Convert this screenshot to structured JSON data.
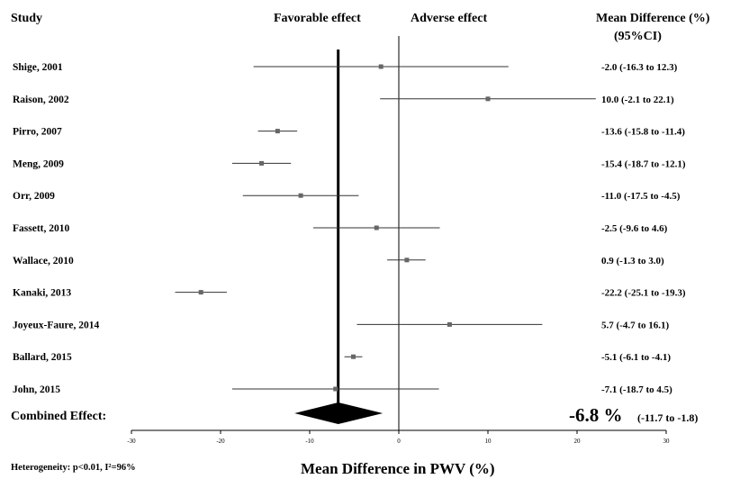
{
  "headers": {
    "study": "Study",
    "favorable": "Favorable effect",
    "adverse": "Adverse effect",
    "mean_diff": "Mean Difference (%)",
    "ci": "(95%CI)"
  },
  "combined": {
    "label": "Combined Effect:",
    "value_text": "-6.8 %",
    "ci_text": "(-11.7 to -1.8)",
    "mean": -6.8,
    "lower": -11.7,
    "upper": -1.8
  },
  "footer": {
    "heterogeneity": "Heterogeneity: p<0.01, I²=96%",
    "xlabel": "Mean Difference in PWV (%)"
  },
  "chart_data": {
    "type": "forest",
    "xlim": [
      -30,
      30
    ],
    "x_ticks": [
      -30,
      -20,
      -10,
      0,
      10,
      20,
      30
    ],
    "reference_line": 0,
    "combined_line": -6.8,
    "studies": [
      {
        "label": "Shige, 2001",
        "mean": -2.0,
        "lower": -16.3,
        "upper": 12.3,
        "text": "-2.0 (-16.3 to 12.3)"
      },
      {
        "label": "Raison, 2002",
        "mean": 10.0,
        "lower": -2.1,
        "upper": 22.1,
        "text": "10.0 (-2.1 to 22.1)"
      },
      {
        "label": "Pirro, 2007",
        "mean": -13.6,
        "lower": -15.8,
        "upper": -11.4,
        "text": "-13.6 (-15.8 to -11.4)"
      },
      {
        "label": "Meng, 2009",
        "mean": -15.4,
        "lower": -18.7,
        "upper": -12.1,
        "text": "-15.4 (-18.7 to -12.1)"
      },
      {
        "label": "Orr, 2009",
        "mean": -11.0,
        "lower": -17.5,
        "upper": -4.5,
        "text": "-11.0 (-17.5 to -4.5)"
      },
      {
        "label": "Fassett, 2010",
        "mean": -2.5,
        "lower": -9.6,
        "upper": 4.6,
        "text": "-2.5 (-9.6 to 4.6)"
      },
      {
        "label": "Wallace, 2010",
        "mean": 0.9,
        "lower": -1.3,
        "upper": 3.0,
        "text": "0.9 (-1.3 to 3.0)"
      },
      {
        "label": "Kanaki, 2013",
        "mean": -22.2,
        "lower": -25.1,
        "upper": -19.3,
        "text": "-22.2 (-25.1 to -19.3)"
      },
      {
        "label": "Joyeux-Faure, 2014",
        "mean": 5.7,
        "lower": -4.7,
        "upper": 16.1,
        "text": "5.7 (-4.7 to 16.1)"
      },
      {
        "label": "Ballard, 2015",
        "mean": -5.1,
        "lower": -6.1,
        "upper": -4.1,
        "text": "-5.1 (-6.1 to -4.1)"
      },
      {
        "label": "John, 2015",
        "mean": -7.1,
        "lower": -18.7,
        "upper": 4.5,
        "text": "-7.1 (-18.7 to 4.5)"
      }
    ]
  }
}
